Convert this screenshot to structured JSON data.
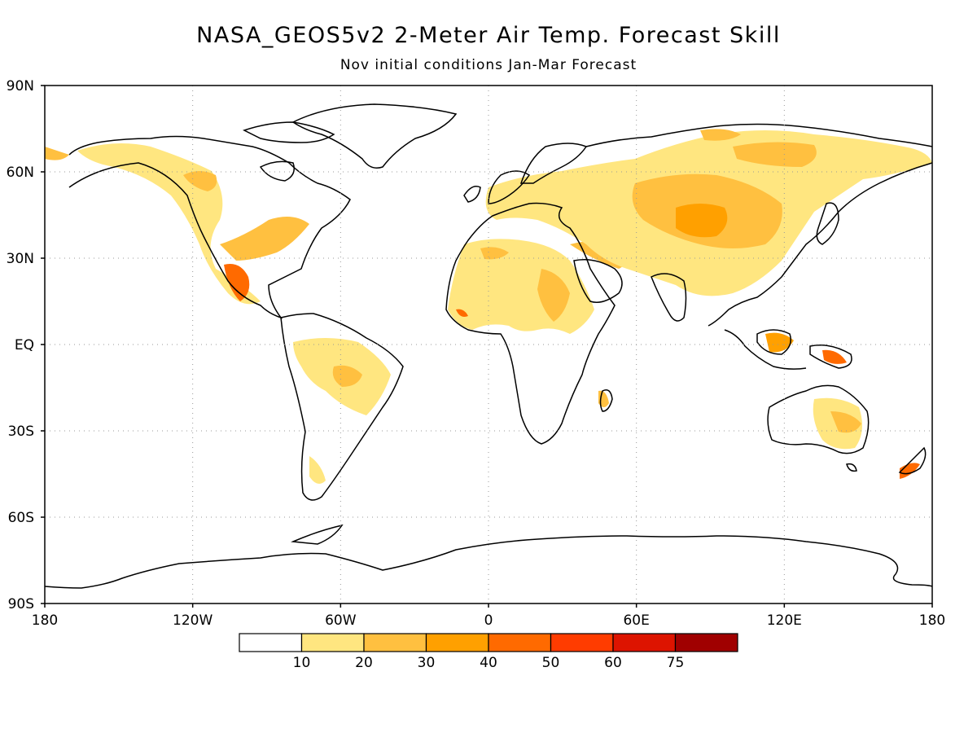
{
  "title": "NASA_GEOS5v2 2-Meter Air Temp. Forecast Skill",
  "subtitle": "Nov initial conditions  Jan-Mar Forecast",
  "map": {
    "lat_labels": [
      "90N",
      "60N",
      "30N",
      "EQ",
      "30S",
      "60S",
      "90S"
    ],
    "lon_labels": [
      "180",
      "120W",
      "60W",
      "0",
      "60E",
      "120E",
      "180"
    ],
    "grid": "dotted",
    "projection": "equirectangular"
  },
  "legend": {
    "colors": [
      "#ffffff",
      "#ffe680",
      "#ffc040",
      "#ffa000",
      "#ff6a00",
      "#ff3c00",
      "#dd1400",
      "#a00000"
    ],
    "ticks": [
      "10",
      "20",
      "30",
      "40",
      "50",
      "60",
      "75"
    ]
  },
  "colors": {
    "coast": "#000000",
    "grid": "#999999"
  }
}
